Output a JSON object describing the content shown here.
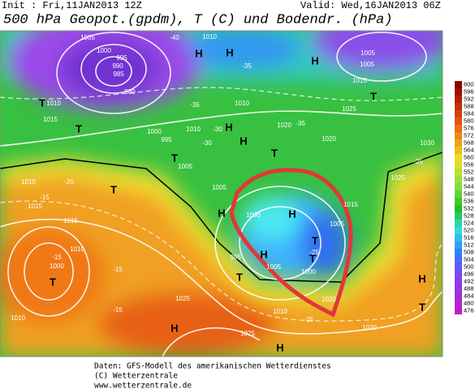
{
  "header": {
    "init": "Init : Fri,11JAN2013 12Z",
    "valid": "Valid: Wed,16JAN2013 06Z",
    "title": "500 hPa Geopot.(gpdm), T (C) und Bodendr. (hPa)"
  },
  "map": {
    "labels": [
      "1005",
      "1010",
      "H",
      "1005",
      "1000",
      "995",
      "990",
      "985",
      "980",
      "T",
      "1010",
      "H",
      "-40",
      "-35",
      "1010",
      "-30",
      "H",
      "1010",
      "T",
      "1015",
      "995",
      "1000",
      "T",
      "1005",
      "1020",
      "-35",
      "T",
      "H",
      "H",
      "1005",
      "T",
      "1015",
      "1025",
      "1020",
      "1030",
      "-25",
      "1010",
      "1015",
      "-15",
      "-20",
      "1015",
      "T",
      "1010",
      "1000",
      "T",
      "-15",
      "H",
      "1005",
      "1000",
      "995",
      "T",
      "1005",
      "T",
      "1000",
      "H",
      "1015",
      "1005",
      "H",
      "T",
      "-25",
      "1020",
      "1025",
      "H",
      "-15",
      "-15",
      "1010",
      "1020",
      "H",
      "1025",
      "1010",
      "-25",
      "H",
      "T",
      "1025",
      "-35",
      "-30"
    ]
  },
  "colorbar": {
    "ticks": [
      600,
      596,
      592,
      588,
      584,
      580,
      576,
      572,
      568,
      564,
      560,
      556,
      552,
      548,
      544,
      540,
      536,
      532,
      528,
      524,
      520,
      516,
      512,
      508,
      504,
      500,
      496,
      492,
      488,
      484,
      480,
      476
    ]
  },
  "footer": {
    "lines": [
      "Daten: GFS-Modell des amerikanischen Wetterdienstes",
      "(C) Wetterzentrale",
      "www.wetterzentrale.de"
    ]
  }
}
